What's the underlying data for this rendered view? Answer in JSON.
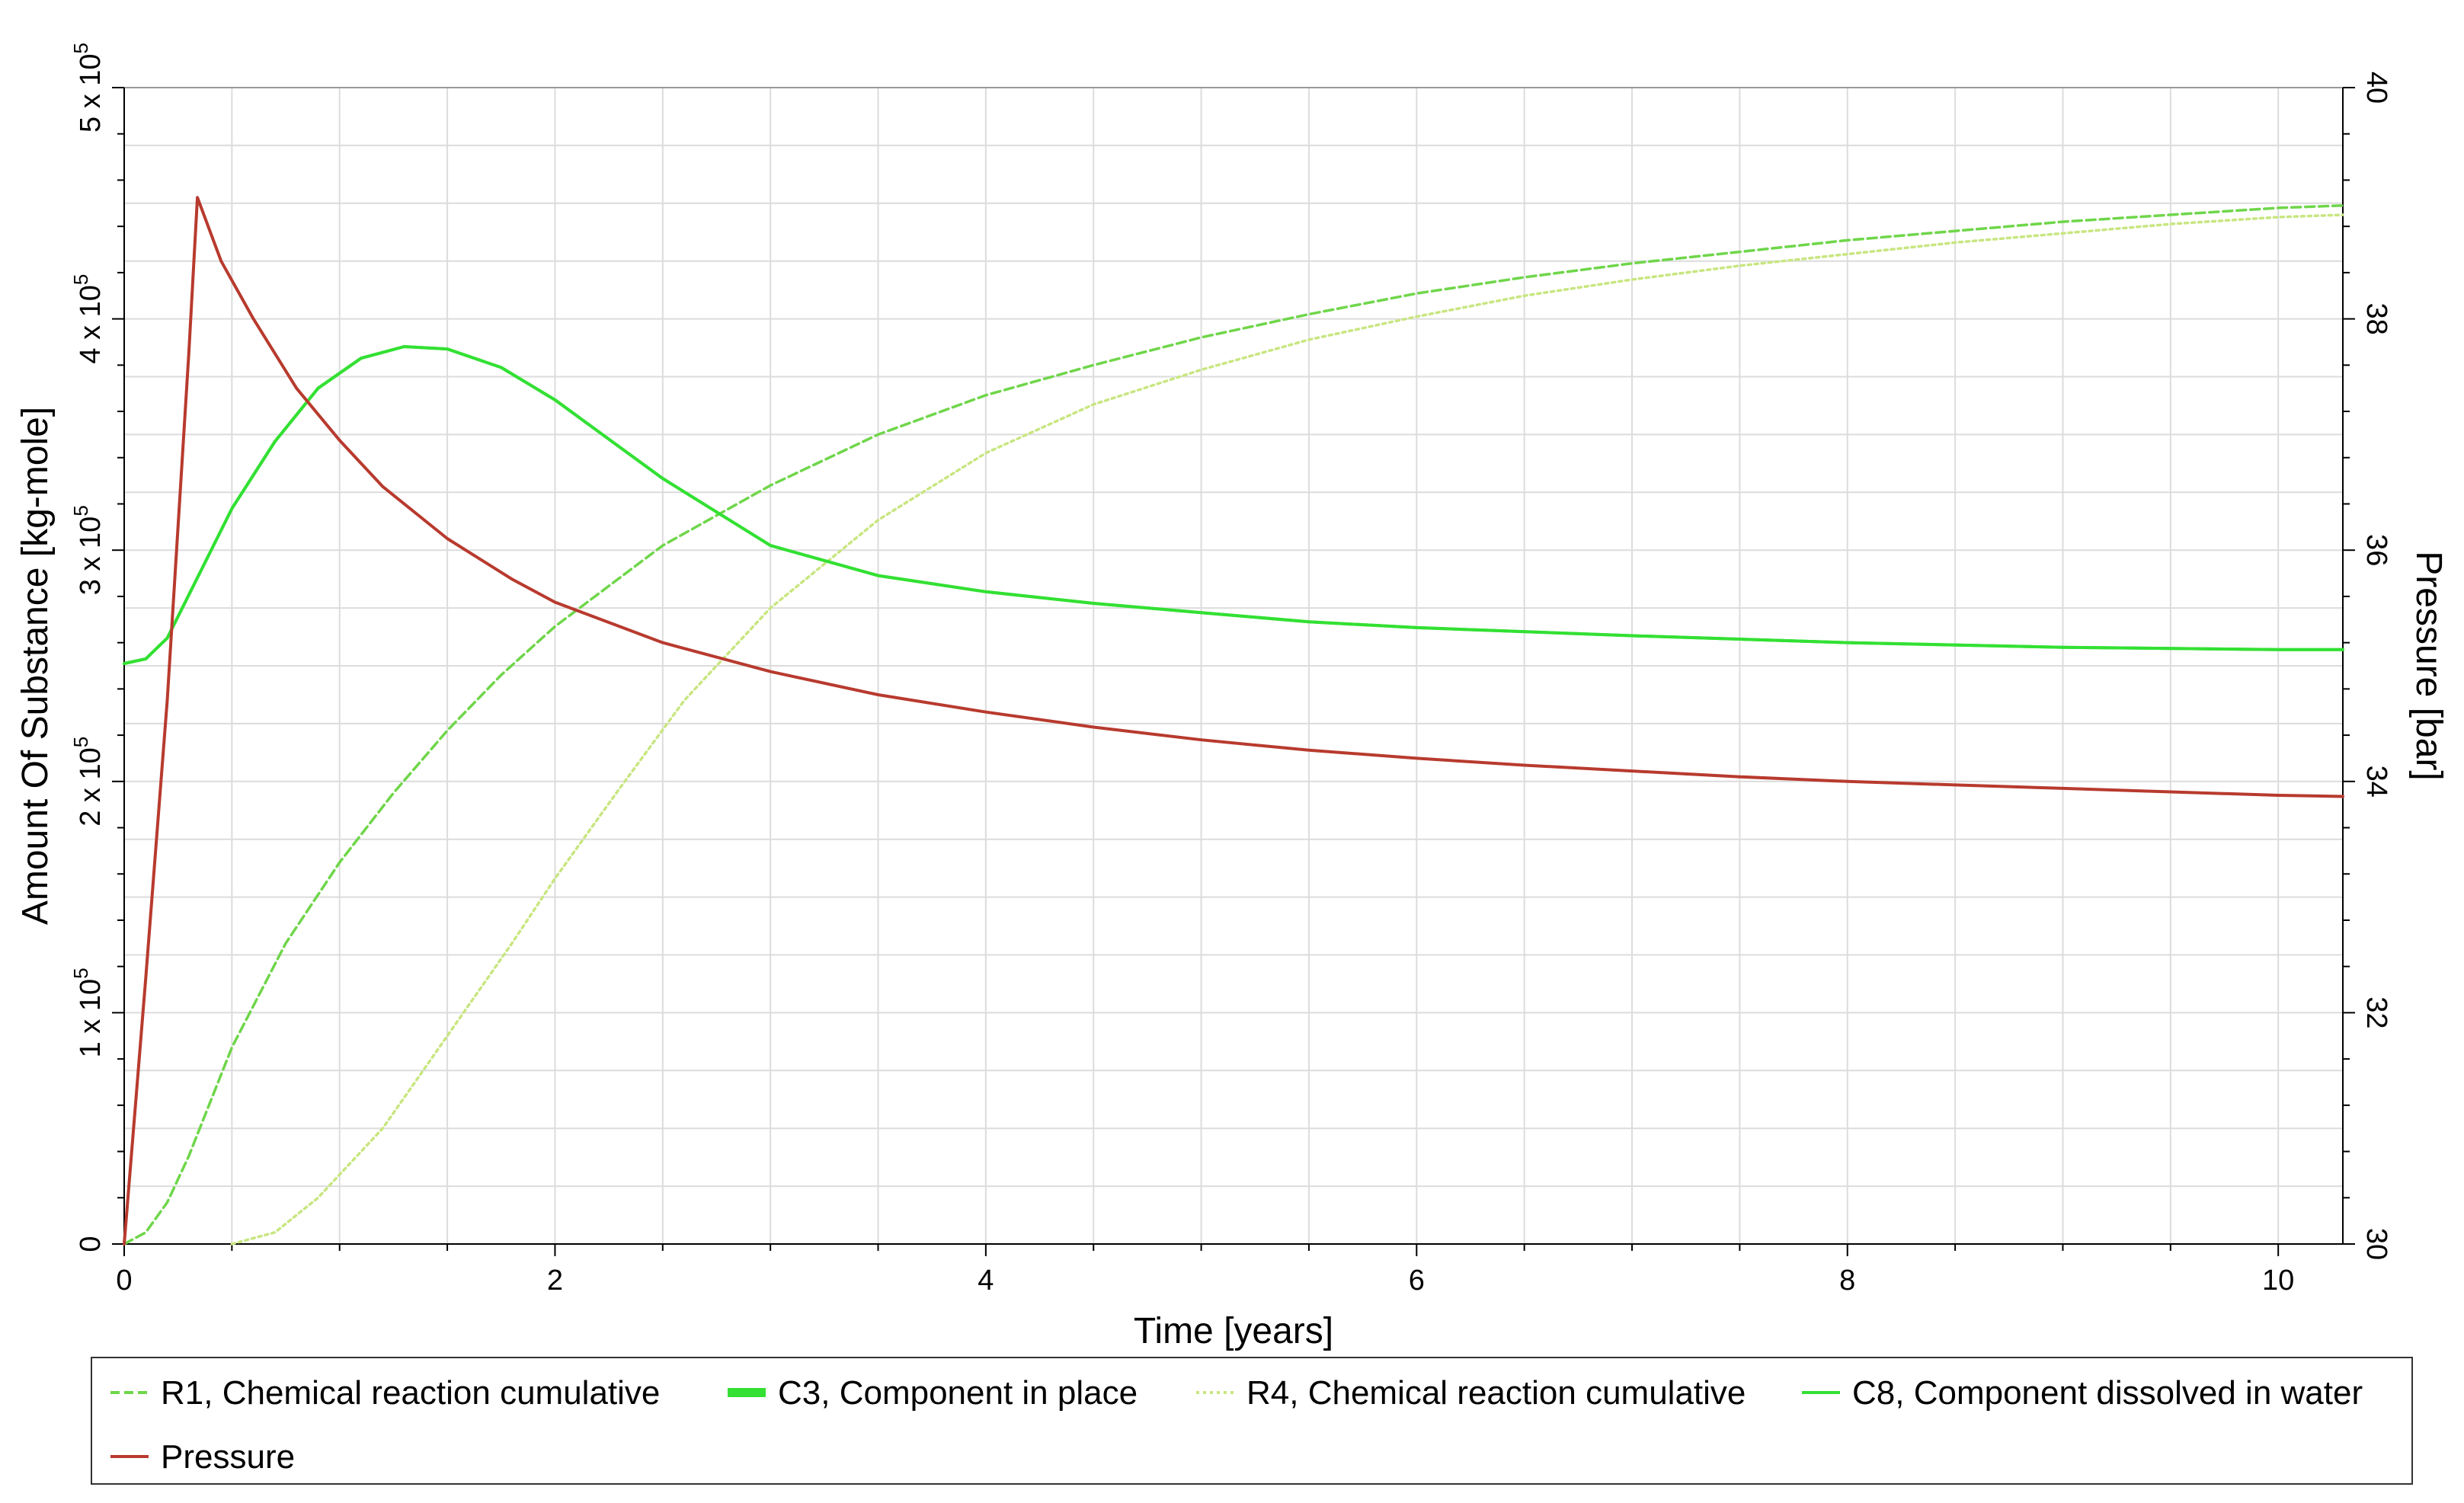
{
  "chart_data": {
    "type": "line",
    "xlabel": "Time [years]",
    "ylabel_left": "Amount Of Substance [kg-mole]",
    "ylabel_right": "Pressure [bar]",
    "xlim": [
      0,
      10.3
    ],
    "ylim_left": [
      0,
      500000
    ],
    "ylim_right": [
      30,
      40
    ],
    "x_ticks": [
      "0",
      "2",
      "4",
      "6",
      "8",
      "10"
    ],
    "y_left_ticks": [
      {
        "mantissa": "0",
        "exp": ""
      },
      {
        "mantissa": "1 x 10",
        "exp": "5"
      },
      {
        "mantissa": "2 x 10",
        "exp": "5"
      },
      {
        "mantissa": "3 x 10",
        "exp": "5"
      },
      {
        "mantissa": "4 x 10",
        "exp": "5"
      },
      {
        "mantissa": "5 x 10",
        "exp": "5"
      }
    ],
    "y_right_ticks": [
      "30",
      "32",
      "34",
      "36",
      "38",
      "40"
    ],
    "grid": true,
    "legend_position": "bottom",
    "series": [
      {
        "name": "R1, Chemical reaction cumulative",
        "axis": "left",
        "color": "#6fd64a",
        "style": "dashed",
        "x": [
          0,
          0.1,
          0.2,
          0.3,
          0.5,
          0.75,
          1.0,
          1.25,
          1.5,
          1.75,
          2.0,
          2.5,
          3.0,
          3.5,
          4.0,
          4.5,
          5.0,
          5.5,
          6.0,
          6.5,
          7.0,
          7.5,
          8.0,
          8.5,
          9.0,
          9.5,
          10.0,
          10.3
        ],
        "y": [
          0,
          5000,
          18000,
          38000,
          85000,
          130000,
          165000,
          195000,
          222000,
          246000,
          267000,
          302000,
          328000,
          350000,
          367000,
          380000,
          392000,
          402000,
          411000,
          418000,
          424000,
          429000,
          434000,
          438000,
          442000,
          445000,
          448000,
          449000
        ]
      },
      {
        "name": "C3, Component in place",
        "axis": "left",
        "color": "#33e033",
        "style": "solid",
        "x": [
          0,
          0.1,
          0.2,
          0.35,
          0.5,
          0.7,
          0.9,
          1.1,
          1.3,
          1.5,
          1.75,
          2.0,
          2.5,
          3.0,
          3.5,
          4.0,
          4.5,
          5.0,
          5.5,
          6.0,
          7.0,
          8.0,
          9.0,
          10.0,
          10.3
        ],
        "y": [
          251000,
          253000,
          262000,
          290000,
          318000,
          347000,
          370000,
          383000,
          388000,
          387000,
          379000,
          365000,
          331000,
          302000,
          289000,
          282000,
          277000,
          273000,
          269000,
          266500,
          263000,
          260000,
          258000,
          257000,
          257000
        ]
      },
      {
        "name": "R4, Chemical reaction cumulative",
        "axis": "left",
        "color": "#c8e680",
        "style": "dotted",
        "x": [
          0.5,
          0.7,
          0.9,
          1.2,
          1.5,
          1.8,
          2.0,
          2.3,
          2.6,
          3.0,
          3.5,
          4.0,
          4.5,
          5.0,
          5.5,
          6.0,
          6.5,
          7.0,
          7.5,
          8.0,
          8.5,
          9.0,
          9.5,
          10.0,
          10.3
        ],
        "y": [
          0,
          5000,
          20000,
          50000,
          90000,
          130000,
          158000,
          197000,
          235000,
          275000,
          313000,
          342000,
          363000,
          378000,
          391000,
          401000,
          410000,
          417000,
          423000,
          428000,
          433000,
          437000,
          441000,
          444000,
          445000
        ]
      },
      {
        "name": "C8, Component dissolved in water",
        "axis": "left",
        "color": "#33e033",
        "style": "solid",
        "x": [
          0,
          0.1,
          0.2,
          0.35,
          0.5,
          0.7,
          0.9,
          1.1,
          1.3,
          1.5,
          1.75,
          2.0,
          2.5,
          3.0,
          3.5,
          4.0,
          4.5,
          5.0,
          5.5,
          6.0,
          7.0,
          8.0,
          9.0,
          10.0,
          10.3
        ],
        "y": [
          251000,
          253000,
          262000,
          290000,
          318000,
          347000,
          370000,
          383000,
          388000,
          387000,
          379000,
          365000,
          331000,
          302000,
          289000,
          282000,
          277000,
          273000,
          269000,
          266500,
          263000,
          260000,
          258000,
          257000,
          257000
        ]
      },
      {
        "name": "Pressure",
        "axis": "right",
        "color": "#b83a2e",
        "style": "solid",
        "x": [
          0,
          0.1,
          0.2,
          0.3,
          0.34,
          0.45,
          0.6,
          0.8,
          1.0,
          1.2,
          1.5,
          1.8,
          2.0,
          2.5,
          3.0,
          3.5,
          4.0,
          4.5,
          5.0,
          5.5,
          6.0,
          6.5,
          7.0,
          7.5,
          8.0,
          8.5,
          9.0,
          9.5,
          10.0,
          10.3
        ],
        "y": [
          30.0,
          32.3,
          34.7,
          37.7,
          39.05,
          38.5,
          38.0,
          37.4,
          36.95,
          36.55,
          36.1,
          35.75,
          35.55,
          35.2,
          34.95,
          34.75,
          34.6,
          34.47,
          34.36,
          34.27,
          34.2,
          34.14,
          34.09,
          34.04,
          34.0,
          33.97,
          33.94,
          33.91,
          33.88,
          33.87
        ]
      }
    ]
  }
}
